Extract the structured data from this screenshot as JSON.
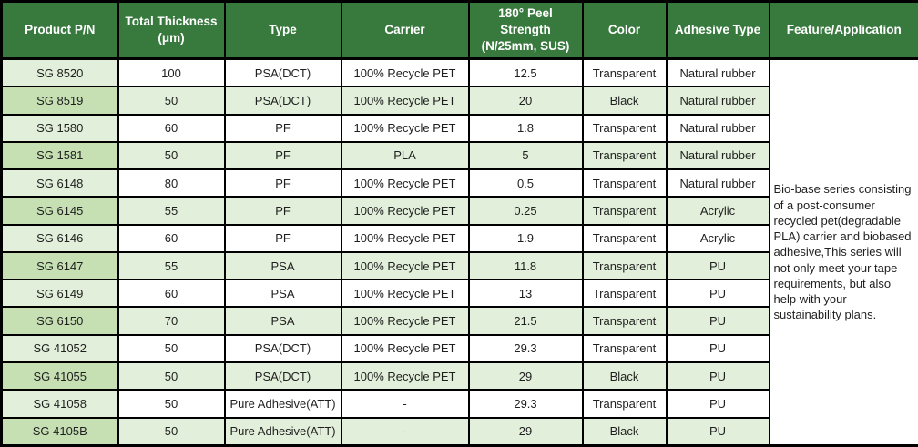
{
  "table": {
    "header": {
      "columns": [
        "Product P/N",
        "Total Thickness\n(μm)",
        "Type",
        "Carrier",
        "180° Peel\nStrength\n(N/25mm, SUS)",
        "Color",
        "Adhesive Type",
        "Feature/Application"
      ]
    },
    "rows": [
      [
        "SG 8520",
        "100",
        "PSA(DCT)",
        "100% Recycle PET",
        "12.5",
        "Transparent",
        "Natural rubber"
      ],
      [
        "SG 8519",
        "50",
        "PSA(DCT)",
        "100% Recycle PET",
        "20",
        "Black",
        "Natural rubber"
      ],
      [
        "SG 1580",
        "60",
        "PF",
        "100% Recycle PET",
        "1.8",
        "Transparent",
        "Natural rubber"
      ],
      [
        "SG 1581",
        "50",
        "PF",
        "PLA",
        "5",
        "Transparent",
        "Natural rubber"
      ],
      [
        "SG 6148",
        "80",
        "PF",
        "100% Recycle PET",
        "0.5",
        "Transparent",
        "Natural rubber"
      ],
      [
        "SG 6145",
        "55",
        "PF",
        "100% Recycle PET",
        "0.25",
        "Transparent",
        "Acrylic"
      ],
      [
        "SG 6146",
        "60",
        "PF",
        "100% Recycle PET",
        "1.9",
        "Transparent",
        "Acrylic"
      ],
      [
        "SG 6147",
        "55",
        "PSA",
        "100% Recycle PET",
        "11.8",
        "Transparent",
        "PU"
      ],
      [
        "SG 6149",
        "60",
        "PSA",
        "100% Recycle PET",
        "13",
        "Transparent",
        "PU"
      ],
      [
        "SG 6150",
        "70",
        "PSA",
        "100% Recycle PET",
        "21.5",
        "Transparent",
        "PU"
      ],
      [
        "SG 41052",
        "50",
        "PSA(DCT)",
        "100% Recycle PET",
        "29.3",
        "Transparent",
        "PU"
      ],
      [
        "SG 41055",
        "50",
        "PSA(DCT)",
        "100% Recycle PET",
        "29",
        "Black",
        "PU"
      ],
      [
        "SG 41058",
        "50",
        "Pure Adhesive(ATT)",
        "-",
        "29.3",
        "Transparent",
        "PU"
      ],
      [
        "SG 4105B",
        "50",
        "Pure Adhesive(ATT)",
        "-",
        "29",
        "Black",
        "PU"
      ]
    ],
    "feature_text": "Bio-base series consisting of a post-consumer recycled pet(degradable PLA) carrier and  biobased adhesive,This series will not only meet your tape requirements, but also help with your sustainability plans."
  },
  "colors": {
    "header_bg": "#38793E",
    "header_text": "#ffffff",
    "row_white": "#ffffff",
    "row_light": "#e2efda",
    "first_col_light": "#e2efda",
    "first_col_dark": "#c6e0b4",
    "border": "#000000",
    "body_text": "#1f1f1f"
  }
}
